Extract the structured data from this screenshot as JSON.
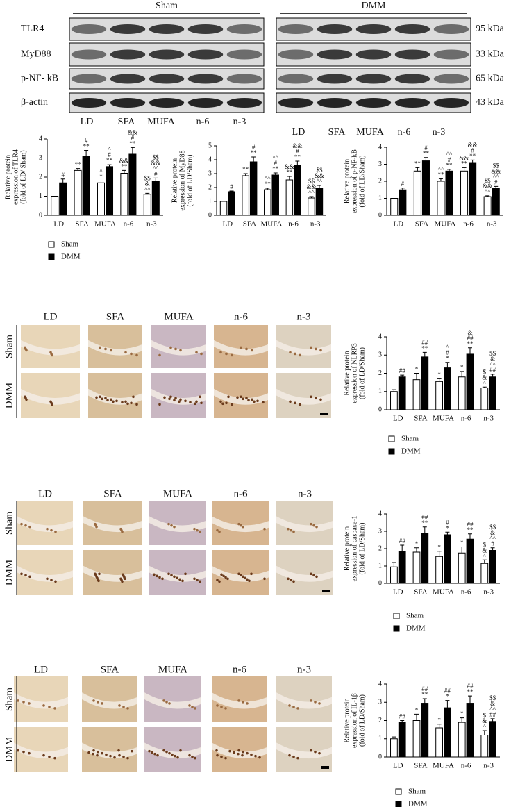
{
  "blot": {
    "groups": [
      "Sham",
      "DMM"
    ],
    "proteins": [
      "TLR4",
      "MyD88",
      "p-NF- kB",
      "β-actin"
    ],
    "sizes": [
      "95 kDa",
      "33 kDa",
      "65 kDa",
      "43 kDa"
    ],
    "lanes": [
      "LD",
      "SFA",
      "MUFA",
      "n-6",
      "n-3"
    ]
  },
  "histology": [
    {
      "columns": [
        "LD",
        "SFA",
        "MUFA",
        "n-6",
        "n-3"
      ],
      "rows": [
        "Sham",
        "DMM"
      ]
    },
    {
      "columns": [
        "LD",
        "SFA",
        "MUFA",
        "n-6",
        "n-3"
      ],
      "rows": [
        "Sham",
        "DMM"
      ]
    },
    {
      "columns": [
        "LD",
        "SFA",
        "MUFA",
        "n-6",
        "n-3"
      ],
      "rows": [
        "Sham",
        "DMM"
      ]
    }
  ],
  "chart_data": [
    {
      "type": "bar",
      "ylabel": [
        "Relative protein",
        "expression of TLR4",
        "(fold of LD/ Sham)"
      ],
      "categories": [
        "LD",
        "SFA",
        "MUFA",
        "n-6",
        "n-3"
      ],
      "ylim": [
        0,
        4
      ],
      "yticks": [
        0,
        1,
        2,
        3,
        4
      ],
      "legend": "bottom-left",
      "series": [
        {
          "name": "Sham",
          "color": "#ffffff",
          "values": [
            1.0,
            2.35,
            1.7,
            2.2,
            1.1
          ],
          "errors": [
            0,
            0.1,
            0.1,
            0.15,
            0.05
          ],
          "annotations": [
            [],
            [
              "**"
            ],
            [
              "^",
              "*"
            ],
            [
              "&&",
              "**"
            ],
            [
              "$$",
              "&",
              "^^"
            ]
          ]
        },
        {
          "name": "DMM",
          "color": "#000000",
          "values": [
            1.7,
            3.1,
            2.55,
            3.2,
            1.8
          ],
          "errors": [
            0.2,
            0.3,
            0.1,
            0.35,
            0.15
          ],
          "annotations": [
            [
              "#"
            ],
            [
              "#",
              "**"
            ],
            [
              "^",
              "#",
              "**"
            ],
            [
              "&&",
              "#",
              "**"
            ],
            [
              "$$",
              "&&",
              "^^",
              "#"
            ]
          ]
        }
      ]
    },
    {
      "type": "bar",
      "ylabel": [
        "Relative protein",
        "expression of MyD88",
        "(fold of LD/Sham)"
      ],
      "categories": [
        "LD",
        "SFA",
        "MUFA",
        "n-6",
        "n-3"
      ],
      "ylim": [
        0,
        5
      ],
      "yticks": [
        0,
        1,
        2,
        3,
        4,
        5
      ],
      "series": [
        {
          "color": "#ffffff",
          "values": [
            1.0,
            2.85,
            1.85,
            2.55,
            1.25
          ],
          "errors": [
            0,
            0.15,
            0.1,
            0.25,
            0.1
          ],
          "annotations": [
            [],
            [
              "**"
            ],
            [
              "^^",
              "**"
            ],
            [
              "&&",
              "**"
            ],
            [
              "$$",
              "&&",
              "^^"
            ]
          ]
        },
        {
          "color": "#000000",
          "values": [
            1.7,
            3.85,
            2.9,
            3.6,
            1.95
          ],
          "errors": [
            0.05,
            0.35,
            0.15,
            0.3,
            0.2
          ],
          "annotations": [
            [
              "#"
            ],
            [
              "#",
              "**"
            ],
            [
              "^^",
              "#",
              "**"
            ],
            [
              "&&",
              "#",
              "**"
            ],
            [
              "$$",
              "&&",
              "^^"
            ]
          ]
        }
      ]
    },
    {
      "type": "bar",
      "ylabel": [
        "Relative protein",
        "expression of p-NF-kB",
        "(fold of LD/Sham)"
      ],
      "categories": [
        "LD",
        "SFA",
        "MUFA",
        "n-6",
        "n-3"
      ],
      "ylim": [
        0,
        4
      ],
      "yticks": [
        0,
        1,
        2,
        3,
        4
      ],
      "series": [
        {
          "color": "#ffffff",
          "values": [
            1.0,
            2.6,
            2.0,
            2.6,
            1.1
          ],
          "errors": [
            0,
            0.2,
            0.15,
            0.2,
            0.05
          ],
          "annotations": [
            [],
            [
              "**"
            ],
            [
              "^^",
              "**"
            ],
            [
              "&&",
              "**"
            ],
            [
              "$$",
              "&&",
              "^^"
            ]
          ]
        },
        {
          "color": "#000000",
          "values": [
            1.5,
            3.2,
            2.6,
            3.1,
            1.6
          ],
          "errors": [
            0.1,
            0.2,
            0.1,
            0.15,
            0.1
          ],
          "annotations": [
            [
              "#"
            ],
            [
              "#",
              "**"
            ],
            [
              "^^",
              "#",
              "**"
            ],
            [
              "&&",
              "#",
              "**"
            ],
            [
              "$$",
              "&&",
              "^^",
              "#"
            ]
          ]
        }
      ]
    },
    {
      "type": "bar",
      "ylabel": [
        "Relative protein",
        "expression of NLRP3",
        "(fold of LD/Sham)"
      ],
      "categories": [
        "LD",
        "SFA",
        "MUFA",
        "n-6",
        "n-3"
      ],
      "ylim": [
        0,
        4
      ],
      "yticks": [
        0,
        1,
        2,
        3,
        4
      ],
      "legend": "bottom-left",
      "series": [
        {
          "name": "Sham",
          "color": "#ffffff",
          "values": [
            1.0,
            1.65,
            1.55,
            1.8,
            1.2
          ],
          "errors": [
            0.1,
            0.35,
            0.15,
            0.3,
            0.05
          ],
          "annotations": [
            [],
            [
              "*"
            ],
            [
              "*"
            ],
            [
              "*"
            ],
            [
              "$",
              "&",
              "^"
            ]
          ]
        },
        {
          "name": "DMM",
          "color": "#000000",
          "values": [
            1.8,
            2.9,
            2.3,
            3.05,
            1.8
          ],
          "errors": [
            0.1,
            0.25,
            0.3,
            0.35,
            0.15
          ],
          "annotations": [
            [
              "##"
            ],
            [
              "##",
              "**"
            ],
            [
              "^",
              "#",
              "*"
            ],
            [
              "&",
              "##",
              "**"
            ],
            [
              "$$",
              "&",
              "^^",
              "##"
            ]
          ]
        }
      ]
    },
    {
      "type": "bar",
      "ylabel": [
        "Relative protein",
        "expression of caspase-1",
        "(fold of LD/Sham)"
      ],
      "categories": [
        "LD",
        "SFA",
        "MUFA",
        "n-6",
        "n-3"
      ],
      "ylim": [
        0,
        4
      ],
      "yticks": [
        0,
        1,
        2,
        3,
        4
      ],
      "legend": "bottom-left",
      "series": [
        {
          "name": "Sham",
          "color": "#ffffff",
          "values": [
            0.95,
            1.8,
            1.55,
            1.75,
            1.15
          ],
          "errors": [
            0.25,
            0.25,
            0.3,
            0.35,
            0.2
          ],
          "annotations": [
            [],
            [
              "*"
            ],
            [
              "*"
            ],
            [
              "*"
            ],
            [
              "$",
              "&",
              "^"
            ]
          ]
        },
        {
          "name": "DMM",
          "color": "#000000",
          "values": [
            1.85,
            2.9,
            2.8,
            2.55,
            1.9
          ],
          "errors": [
            0.35,
            0.35,
            0.15,
            0.3,
            0.15
          ],
          "annotations": [
            [
              "##"
            ],
            [
              "##",
              "**"
            ],
            [
              "#",
              "*"
            ],
            [
              "##",
              "**"
            ],
            [
              "$$",
              "&",
              "^^",
              "#"
            ]
          ]
        }
      ]
    },
    {
      "type": "bar",
      "ylabel": [
        "Relative protein",
        "expression of IL-1β",
        "(fold of LD/Sham)"
      ],
      "categories": [
        "LD",
        "SFA",
        "MUFA",
        "n-6",
        "n-3"
      ],
      "ylim": [
        0,
        4
      ],
      "yticks": [
        0,
        1,
        2,
        3,
        4
      ],
      "legend": "bottom-left",
      "series": [
        {
          "name": "Sham",
          "color": "#ffffff",
          "values": [
            1.0,
            2.0,
            1.6,
            1.9,
            1.2
          ],
          "errors": [
            0.1,
            0.35,
            0.2,
            0.25,
            0.25
          ],
          "annotations": [
            [],
            [
              "*"
            ],
            [
              "*"
            ],
            [
              "*"
            ],
            [
              "$",
              "&",
              "^"
            ]
          ]
        },
        {
          "name": "DMM",
          "color": "#000000",
          "values": [
            1.9,
            2.95,
            2.7,
            2.95,
            1.95
          ],
          "errors": [
            0.1,
            0.25,
            0.4,
            0.4,
            0.15
          ],
          "annotations": [
            [
              "##"
            ],
            [
              "##",
              "**"
            ],
            [
              "##",
              "*"
            ],
            [
              "##",
              "**"
            ],
            [
              "$$",
              "&",
              "^^",
              "##"
            ]
          ]
        }
      ]
    }
  ]
}
